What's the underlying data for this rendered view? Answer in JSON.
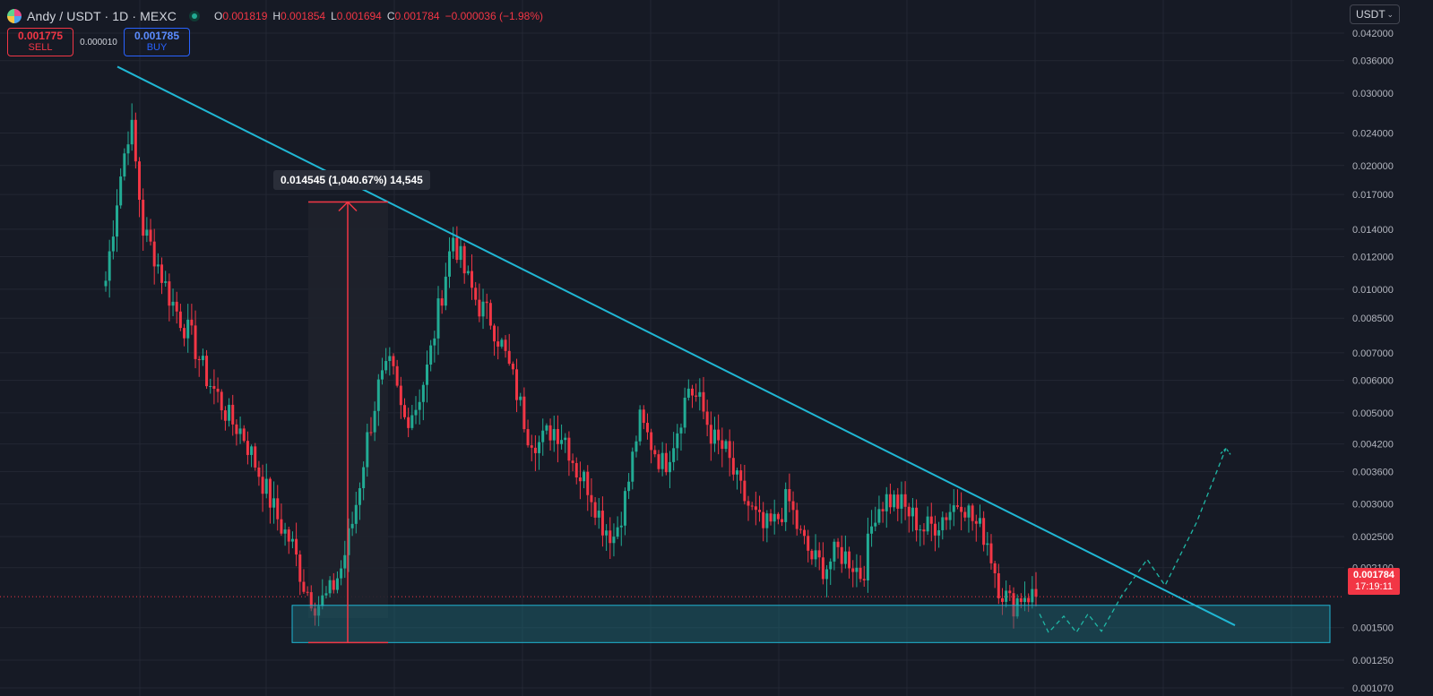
{
  "header": {
    "title": "Andy / USDT · 1D · MEXC",
    "ohlc": [
      {
        "key": "O",
        "value": "0.001819"
      },
      {
        "key": "H",
        "value": "0.001854"
      },
      {
        "key": "L",
        "value": "0.001694"
      },
      {
        "key": "C",
        "value": "0.001784"
      }
    ],
    "change": "−0.000036 (−1.98%)"
  },
  "trade": {
    "sell_price": "0.001775",
    "sell_label": "SELL",
    "spread": "0.000010",
    "buy_price": "0.001785",
    "buy_label": "BUY"
  },
  "unit_selector": "USDT",
  "last_price": {
    "value": "0.001784",
    "countdown": "17:19:11"
  },
  "measure_label": "0.014545 (1,040.67%) 14,545",
  "colors": {
    "background": "#161a25",
    "up": "#22ab94",
    "down": "#f23645",
    "trendline": "#20b7d4",
    "zone": "#1d6b78",
    "grid": "#232733"
  },
  "chart_data": {
    "type": "candlestick",
    "symbol": "Andy / USDT",
    "interval": "1D",
    "exchange": "MEXC",
    "y_scale": "log",
    "y_ticks": [
      0.042,
      0.036,
      0.03,
      0.024,
      0.02,
      0.017,
      0.014,
      0.012,
      0.01,
      0.0085,
      0.007,
      0.006,
      0.005,
      0.0042,
      0.0036,
      0.003,
      0.0025,
      0.0021,
      0.0015,
      0.00125,
      0.00107
    ],
    "y_tick_labels": [
      "0.042000",
      "0.036000",
      "0.030000",
      "0.024000",
      "0.020000",
      "0.017000",
      "0.014000",
      "0.012000",
      "0.010000",
      "0.008500",
      "0.007000",
      "0.006000",
      "0.005000",
      "0.004200",
      "0.003600",
      "0.003000",
      "0.002500",
      "0.002100",
      "0.001500",
      "0.001250",
      "0.001070"
    ],
    "close_path": [
      0.0105,
      0.0175,
      0.026,
      0.014,
      0.012,
      0.0098,
      0.0085,
      0.0075,
      0.0062,
      0.0055,
      0.0048,
      0.0045,
      0.0038,
      0.0032,
      0.0027,
      0.0024,
      0.0019,
      0.0017,
      0.0018,
      0.0021,
      0.0028,
      0.0042,
      0.0058,
      0.0065,
      0.0048,
      0.0052,
      0.0065,
      0.0095,
      0.0135,
      0.0108,
      0.0092,
      0.0085,
      0.0072,
      0.0058,
      0.0045,
      0.0042,
      0.0046,
      0.0044,
      0.0036,
      0.0033,
      0.0027,
      0.0025,
      0.0032,
      0.0048,
      0.0042,
      0.0037,
      0.0045,
      0.0058,
      0.0052,
      0.0043,
      0.004,
      0.0033,
      0.0029,
      0.0026,
      0.0027,
      0.0031,
      0.0025,
      0.0022,
      0.0021,
      0.0023,
      0.0022,
      0.002,
      0.0029,
      0.0031,
      0.003,
      0.0028,
      0.0026,
      0.0027,
      0.0029,
      0.0031,
      0.0027,
      0.0025,
      0.0019,
      0.0017,
      0.00182,
      0.001784
    ],
    "overlays": {
      "descending_trendline": {
        "from_price": 0.0348,
        "to_price": 0.00152
      },
      "support_zone": {
        "top": 0.0017,
        "bottom": 0.00138
      },
      "measure": {
        "from_price": 0.00138,
        "to_price": 0.0163,
        "change": "0.014545",
        "percent": "1,040.67%",
        "ticks": "14,545"
      },
      "projection_path": [
        0.00162,
        0.00146,
        0.0016,
        0.00146,
        0.00162,
        0.00147,
        0.0018,
        0.0022,
        0.0019,
        0.0027,
        0.0041
      ]
    }
  }
}
